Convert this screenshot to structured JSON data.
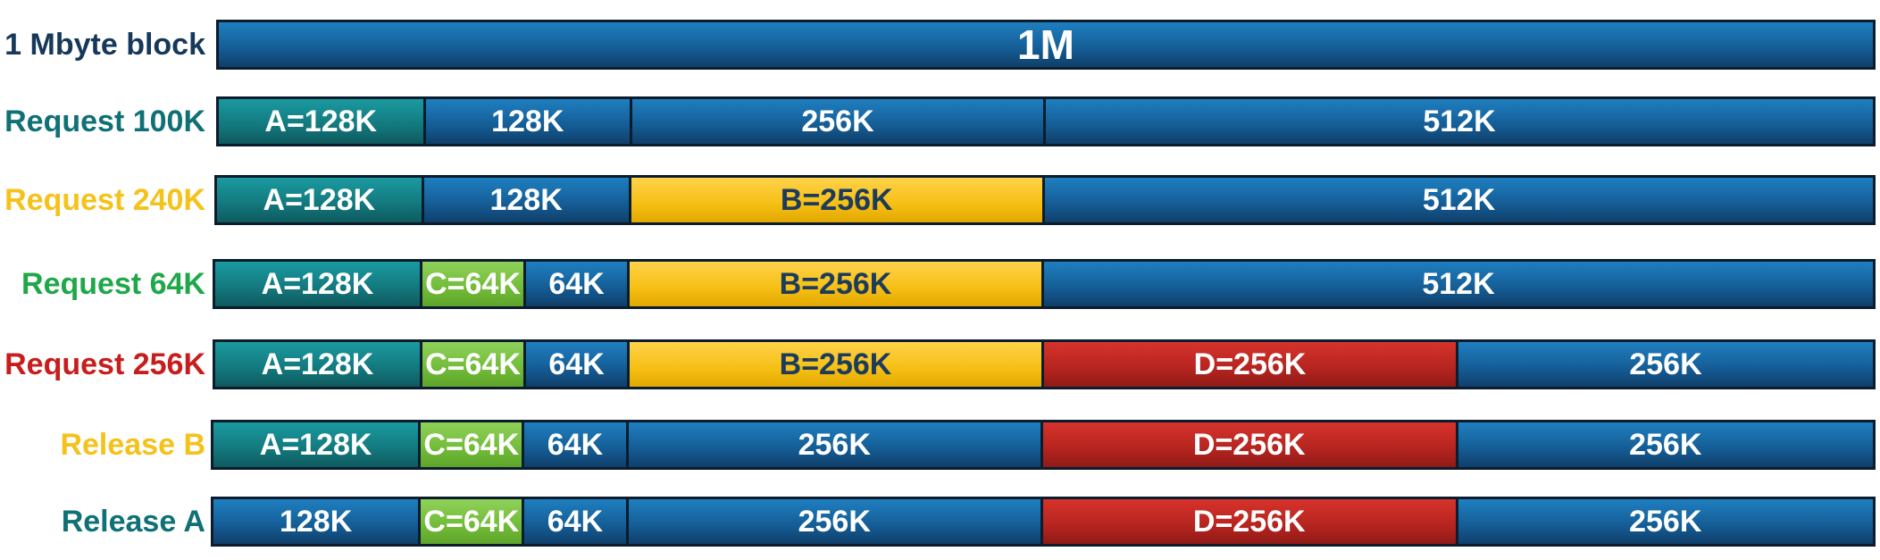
{
  "rows": [
    {
      "label": "1 Mbyte block",
      "label_color": "#16385a",
      "segments": [
        {
          "text": "1M",
          "size_k": 1024,
          "kind": "free"
        }
      ]
    },
    {
      "label": "Request 100K",
      "label_color": "#0f7076",
      "segments": [
        {
          "text": "A=128K",
          "size_k": 128,
          "kind": "A"
        },
        {
          "text": "128K",
          "size_k": 128,
          "kind": "free"
        },
        {
          "text": "256K",
          "size_k": 256,
          "kind": "free"
        },
        {
          "text": "512K",
          "size_k": 512,
          "kind": "free"
        }
      ]
    },
    {
      "label": "Request 240K",
      "label_color": "#f5c21b",
      "segments": [
        {
          "text": "A=128K",
          "size_k": 128,
          "kind": "A"
        },
        {
          "text": "128K",
          "size_k": 128,
          "kind": "free"
        },
        {
          "text": "B=256K",
          "size_k": 256,
          "kind": "B"
        },
        {
          "text": "512K",
          "size_k": 512,
          "kind": "free"
        }
      ]
    },
    {
      "label": "Request 64K",
      "label_color": "#1fa84a",
      "segments": [
        {
          "text": "A=128K",
          "size_k": 128,
          "kind": "A"
        },
        {
          "text": "C=64K",
          "size_k": 64,
          "kind": "C"
        },
        {
          "text": "64K",
          "size_k": 64,
          "kind": "free"
        },
        {
          "text": "B=256K",
          "size_k": 256,
          "kind": "B"
        },
        {
          "text": "512K",
          "size_k": 512,
          "kind": "free"
        }
      ]
    },
    {
      "label": "Request 256K",
      "label_color": "#c81d1d",
      "segments": [
        {
          "text": "A=128K",
          "size_k": 128,
          "kind": "A"
        },
        {
          "text": "C=64K",
          "size_k": 64,
          "kind": "C"
        },
        {
          "text": "64K",
          "size_k": 64,
          "kind": "free"
        },
        {
          "text": "B=256K",
          "size_k": 256,
          "kind": "B"
        },
        {
          "text": "D=256K",
          "size_k": 256,
          "kind": "D"
        },
        {
          "text": "256K",
          "size_k": 256,
          "kind": "free"
        }
      ]
    },
    {
      "label": "Release B",
      "label_color": "#f5c21b",
      "segments": [
        {
          "text": "A=128K",
          "size_k": 128,
          "kind": "A"
        },
        {
          "text": "C=64K",
          "size_k": 64,
          "kind": "C"
        },
        {
          "text": "64K",
          "size_k": 64,
          "kind": "free"
        },
        {
          "text": "256K",
          "size_k": 256,
          "kind": "free"
        },
        {
          "text": "D=256K",
          "size_k": 256,
          "kind": "D"
        },
        {
          "text": "256K",
          "size_k": 256,
          "kind": "free"
        }
      ]
    },
    {
      "label": "Release A",
      "label_color": "#0f7076",
      "segments": [
        {
          "text": "128K",
          "size_k": 128,
          "kind": "free"
        },
        {
          "text": "C=64K",
          "size_k": 64,
          "kind": "C"
        },
        {
          "text": "64K",
          "size_k": 64,
          "kind": "free"
        },
        {
          "text": "256K",
          "size_k": 256,
          "kind": "free"
        },
        {
          "text": "D=256K",
          "size_k": 256,
          "kind": "D"
        },
        {
          "text": "256K",
          "size_k": 256,
          "kind": "free"
        }
      ]
    }
  ]
}
